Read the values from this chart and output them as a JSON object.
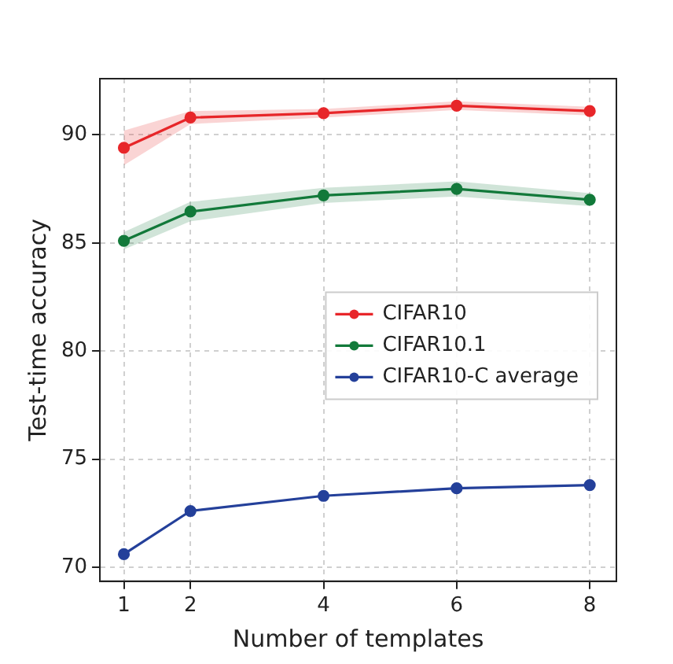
{
  "chart_data": {
    "type": "line",
    "xlabel": "Number of templates",
    "ylabel": "Test-time accuracy",
    "x": [
      1,
      2,
      4,
      6,
      8
    ],
    "series": [
      {
        "name": "CIFAR10",
        "color": "#e8262a",
        "values": [
          89.4,
          90.8,
          91.0,
          91.35,
          91.1
        ],
        "lower": [
          88.6,
          90.5,
          90.8,
          91.15,
          90.9
        ],
        "upper": [
          90.2,
          91.1,
          91.2,
          91.55,
          91.3
        ]
      },
      {
        "name": "CIFAR10.1",
        "color": "#127a3a",
        "values": [
          85.1,
          86.45,
          87.2,
          87.5,
          87.0
        ],
        "lower": [
          84.7,
          86.0,
          86.85,
          87.15,
          86.7
        ],
        "upper": [
          85.5,
          86.9,
          87.55,
          87.85,
          87.3
        ]
      },
      {
        "name": "CIFAR10-C average",
        "color": "#24409a",
        "values": [
          70.6,
          72.6,
          73.3,
          73.65,
          73.8
        ]
      }
    ],
    "xlim": [
      0.64,
      8.4
    ],
    "xticks": [
      1,
      2,
      4,
      6,
      8
    ],
    "ylim": [
      69.35,
      92.6
    ],
    "yticks": [
      70,
      75,
      80,
      85,
      90
    ],
    "grid": true,
    "legend": "center right",
    "marker": "circle",
    "line_style": "solid"
  }
}
